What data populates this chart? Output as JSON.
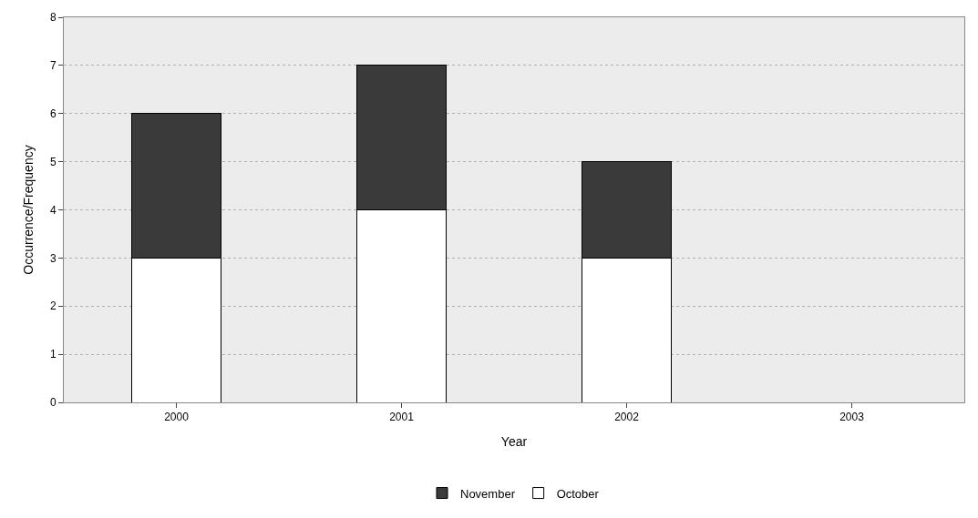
{
  "chart_data": {
    "type": "bar",
    "xlabel": "Year",
    "ylabel": "Occurrence/Frequency",
    "categories": [
      "2000",
      "2001",
      "2002",
      "2003"
    ],
    "series": [
      {
        "name": "October",
        "color": "#ffffff",
        "values": [
          3,
          4,
          3,
          null
        ]
      },
      {
        "name": "November",
        "color": "#3a3a3a",
        "values": [
          3,
          3,
          2,
          null
        ]
      }
    ],
    "stacked": true,
    "ylim": [
      0,
      8
    ],
    "yticks": [
      0,
      1,
      2,
      3,
      4,
      5,
      6,
      7,
      8
    ],
    "grid": "y",
    "legend": "bottom"
  }
}
